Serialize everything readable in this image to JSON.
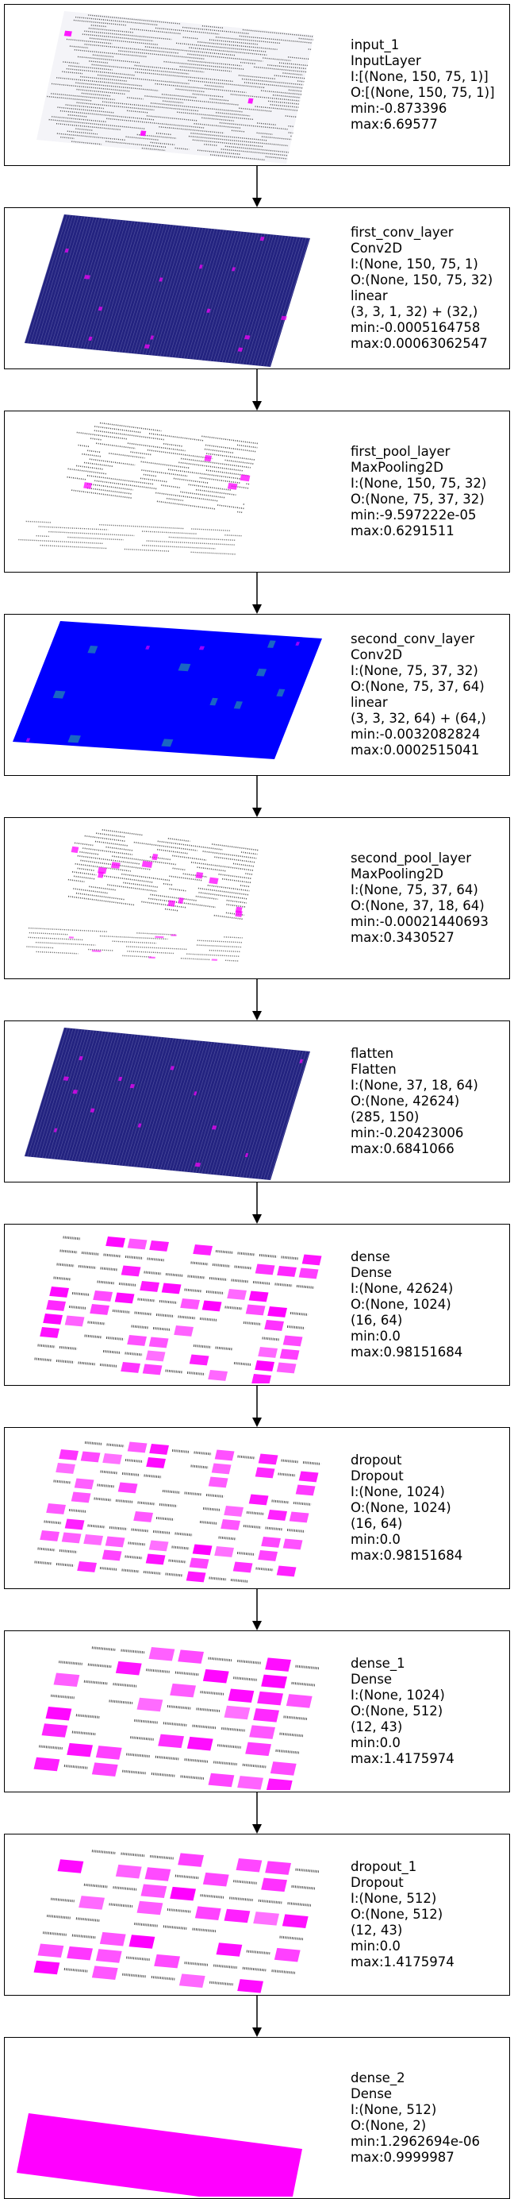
{
  "layers": [
    {
      "lines": [
        "input_1",
        "InputLayer",
        "I:[(None, 150, 75, 1)]",
        "O:[(None, 150, 75, 1)]",
        "min:-0.873396",
        "max:6.69577"
      ],
      "style": "input"
    },
    {
      "lines": [
        "first_conv_layer",
        "Conv2D",
        "I:(None, 150, 75, 1)",
        "O:(None, 150, 75, 32)",
        "linear",
        "(3, 3, 1, 32) + (32,)",
        "min:-0.0005164758",
        "max:0.00063062547"
      ],
      "style": "conv1"
    },
    {
      "lines": [
        "first_pool_layer",
        "MaxPooling2D",
        "I:(None, 150, 75, 32)",
        "O:(None, 75, 37, 32)",
        "min:-9.597222e-05",
        "max:0.6291511"
      ],
      "style": "pool1"
    },
    {
      "lines": [
        "second_conv_layer",
        "Conv2D",
        "I:(None, 75, 37, 32)",
        "O:(None, 75, 37, 64)",
        "linear",
        "(3, 3, 32, 64) + (64,)",
        "min:-0.0032082824",
        "max:0.0002515041"
      ],
      "style": "conv2"
    },
    {
      "lines": [
        "second_pool_layer",
        "MaxPooling2D",
        "I:(None, 75, 37, 64)",
        "O:(None, 37, 18, 64)",
        "min:-0.00021440693",
        "max:0.3430527"
      ],
      "style": "pool2"
    },
    {
      "lines": [
        "flatten",
        "Flatten",
        "I:(None, 37, 18, 64)",
        "O:(None, 42624)",
        "(285, 150)",
        "min:-0.20423006",
        "max:0.6841066"
      ],
      "style": "flatten"
    },
    {
      "lines": [
        "dense",
        "Dense",
        "I:(None, 42624)",
        "O:(None, 1024)",
        "(16, 64)",
        "min:0.0",
        "max:0.98151684"
      ],
      "style": "dense"
    },
    {
      "lines": [
        "dropout",
        "Dropout",
        "I:(None, 1024)",
        "O:(None, 1024)",
        "(16, 64)",
        "min:0.0",
        "max:0.98151684"
      ],
      "style": "dense"
    },
    {
      "lines": [
        "dense_1",
        "Dense",
        "I:(None, 1024)",
        "O:(None, 512)",
        "(12, 43)",
        "min:0.0",
        "max:1.4175974"
      ],
      "style": "dense1"
    },
    {
      "lines": [
        "dropout_1",
        "Dropout",
        "I:(None, 512)",
        "O:(None, 512)",
        "(12, 43)",
        "min:0.0",
        "max:1.4175974"
      ],
      "style": "dense1"
    },
    {
      "lines": [
        "dense_2",
        "Dense",
        "I:(None, 512)",
        "O:(None, 2)",
        "min:1.2962694e-06",
        "max:0.9999987"
      ],
      "style": "out"
    }
  ],
  "colors": {
    "magenta": "#ff00ff",
    "navy": "#1a1a80",
    "blue": "#0000ff",
    "grey": "#555555"
  }
}
